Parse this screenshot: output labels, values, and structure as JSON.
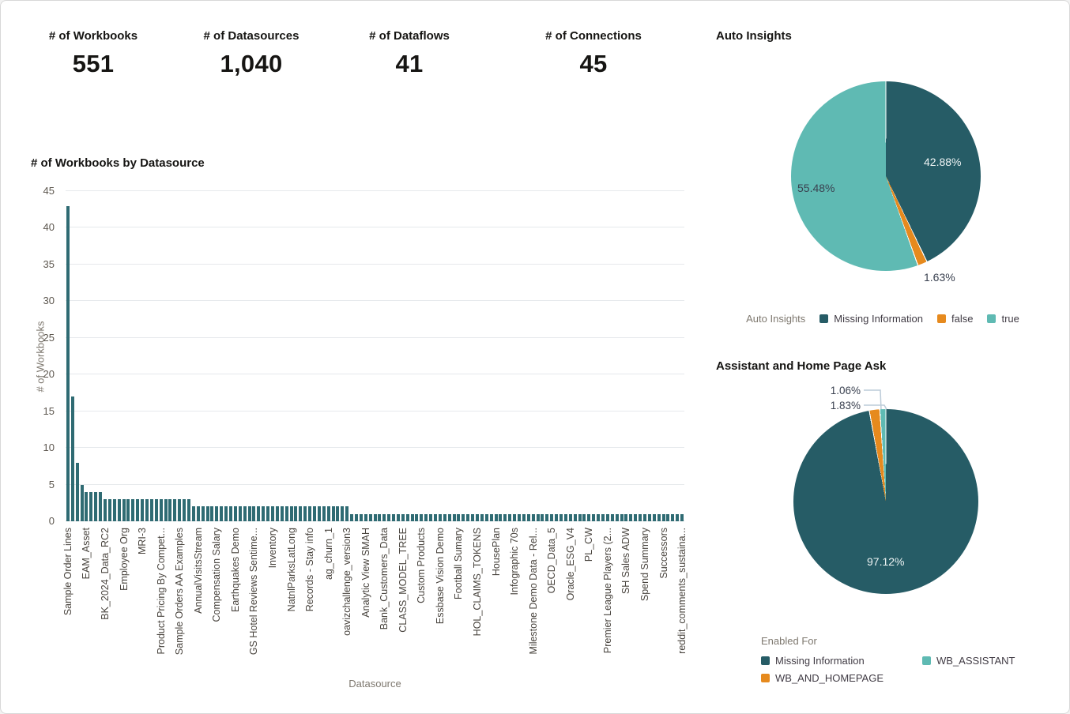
{
  "kpis": [
    {
      "label": "# of Workbooks",
      "value": "551"
    },
    {
      "label": "# of Datasources",
      "value": "1,040"
    },
    {
      "label": "# of Dataflows",
      "value": "41"
    },
    {
      "label": "# of Connections",
      "value": "45"
    }
  ],
  "chart_data": [
    {
      "type": "bar",
      "title": "# of Workbooks by Datasource",
      "xlabel": "Datasource",
      "ylabel": "# of Workbooks",
      "ylim": [
        0,
        45
      ],
      "yticks": [
        0,
        5,
        10,
        15,
        20,
        25,
        30,
        35,
        40,
        45
      ],
      "grid": true,
      "bar_color": "#2f6b73",
      "x_tick_labels_every_nth_bar": 4,
      "x_tick_labels": [
        "Sample Order Lines",
        "EAM_Asset",
        "BK_2024_Data_RC2",
        "Employee Org",
        "MRI-3",
        "Product Pricing By Compet...",
        "Sample Orders AA Examples",
        "AnnualVisitsStream",
        "Compensation Salary",
        "Earthquakes Demo",
        "GS Hotel Reviews Sentime...",
        "Inventory",
        "NatnlParksLatLong",
        "Records - Stay info",
        "ag_churn_1",
        "oavizchallenge_version3",
        "Analytic View SMAH",
        "Bank_Customers_Data",
        "CLASS_MODEL_TREE",
        "Custom Products",
        "Essbase Vision Demo",
        "Football Sumary",
        "HOL_CLAIMS_TOKENS",
        "HousePlan",
        "Infographic 70s",
        "Milestone Demo Data - Rel...",
        "OECD_Data_5",
        "Oracle_ESG_V4",
        "PL_CW",
        "Premier League Players (2...",
        "SH Sales ADW",
        "Spend Summary",
        "Successors",
        "reddit_comments_sustaina..."
      ],
      "values": [
        43,
        17,
        8,
        5,
        4,
        4,
        4,
        4,
        3,
        3,
        3,
        3,
        3,
        3,
        3,
        3,
        3,
        3,
        3,
        3,
        3,
        3,
        3,
        3,
        3,
        3,
        3,
        2,
        2,
        2,
        2,
        2,
        2,
        2,
        2,
        2,
        2,
        2,
        2,
        2,
        2,
        2,
        2,
        2,
        2,
        2,
        2,
        2,
        2,
        2,
        2,
        2,
        2,
        2,
        2,
        2,
        2,
        2,
        2,
        2,
        2,
        1,
        1,
        1,
        1,
        1,
        1,
        1,
        1,
        1,
        1,
        1,
        1,
        1,
        1,
        1,
        1,
        1,
        1,
        1,
        1,
        1,
        1,
        1,
        1,
        1,
        1,
        1,
        1,
        1,
        1,
        1,
        1,
        1,
        1,
        1,
        1,
        1,
        1,
        1,
        1,
        1,
        1,
        1,
        1,
        1,
        1,
        1,
        1,
        1,
        1,
        1,
        1,
        1,
        1,
        1,
        1,
        1,
        1,
        1,
        1,
        1,
        1,
        1,
        1,
        1,
        1,
        1,
        1,
        1,
        1,
        1,
        1
      ]
    },
    {
      "type": "pie",
      "title": "Auto Insights",
      "legend_title": "Auto Insights",
      "legend_position": "bottom",
      "slices": [
        {
          "label": "Missing Information",
          "pct": 42.88,
          "pct_label": "42.88%",
          "color": "#265c66"
        },
        {
          "label": "false",
          "pct": 1.63,
          "pct_label": "1.63%",
          "color": "#e68a1e"
        },
        {
          "label": "true",
          "pct": 55.48,
          "pct_label": "55.48%",
          "color": "#5fbab3"
        }
      ]
    },
    {
      "type": "pie",
      "title": "Assistant and Home Page Ask",
      "legend_title": "Enabled For",
      "legend_position": "bottom",
      "slices": [
        {
          "label": "Missing Information",
          "pct": 97.12,
          "pct_label": "97.12%",
          "color": "#265c66"
        },
        {
          "label": "WB_AND_HOMEPAGE",
          "pct": 1.83,
          "pct_label": "1.83%",
          "color": "#e68a1e"
        },
        {
          "label": "WB_ASSISTANT",
          "pct": 1.06,
          "pct_label": "1.06%",
          "color": "#5fbab3"
        }
      ]
    }
  ],
  "colors": {
    "dark_teal": "#265c66",
    "light_teal": "#5fbab3",
    "orange": "#e68a1e",
    "bar_teal": "#2f6b73",
    "leader_line": "#bccbd8"
  }
}
